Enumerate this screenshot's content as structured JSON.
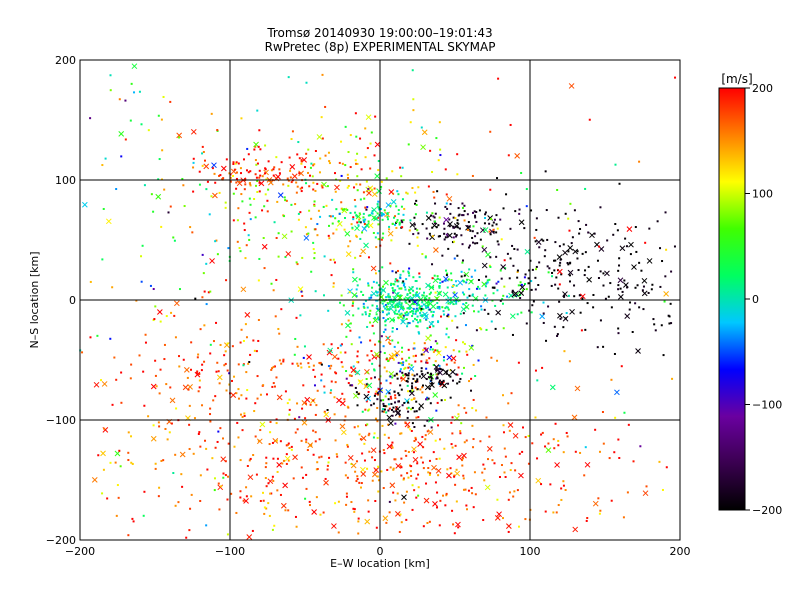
{
  "chart_data": {
    "type": "scatter",
    "title": "Tromsø 20140930 19:00:00–19:01:43",
    "subtitle": "RwPretec (8p) EXPERIMENTAL SKYMAP",
    "xlabel": "E–W location [km]",
    "ylabel": "N–S location [km]",
    "xlim": [
      -200,
      200
    ],
    "ylim": [
      -200,
      200
    ],
    "xticks": [
      -200,
      -100,
      0,
      100,
      200
    ],
    "yticks": [
      -200,
      -100,
      0,
      100,
      200
    ],
    "xtick_labels": [
      "−200",
      "−100",
      "0",
      "100",
      "200"
    ],
    "ytick_labels": [
      "−200",
      "−100",
      "0",
      "100",
      "200"
    ],
    "grid": true,
    "colorbar": {
      "label": "[m/s]",
      "range": [
        -200,
        200
      ],
      "ticks": [
        200,
        100,
        0,
        -100,
        -200
      ],
      "tick_labels": [
        "200",
        "100",
        "0",
        "−100",
        "−200"
      ],
      "colormap": [
        "#000000",
        "#3a0050",
        "#6a00a0",
        "#0000ff",
        "#00c8ff",
        "#00ff60",
        "#40ff00",
        "#ffff00",
        "#ff8000",
        "#ff0000"
      ]
    },
    "marker_types": [
      "dot",
      "cross"
    ],
    "clusters": [
      {
        "cx": -40,
        "cy": -130,
        "sx": 75,
        "sy": 40,
        "n": 520,
        "v": 170,
        "vs": 35
      },
      {
        "cx": -95,
        "cy": -55,
        "sx": 40,
        "sy": 25,
        "n": 140,
        "v": 175,
        "vs": 25
      },
      {
        "cx": 60,
        "cy": -140,
        "sx": 60,
        "sy": 35,
        "n": 180,
        "v": 175,
        "vs": 30
      },
      {
        "cx": 15,
        "cy": -55,
        "sx": 25,
        "sy": 20,
        "n": 220,
        "v": 90,
        "vs": 110
      },
      {
        "cx": 15,
        "cy": -85,
        "sx": 15,
        "sy": 10,
        "n": 70,
        "v": -190,
        "vs": 15
      },
      {
        "cx": 35,
        "cy": -65,
        "sx": 12,
        "sy": 5,
        "n": 60,
        "v": -195,
        "vs": 10
      },
      {
        "cx": 15,
        "cy": -2,
        "sx": 18,
        "sy": 10,
        "n": 320,
        "v": 10,
        "vs": 25
      },
      {
        "cx": 55,
        "cy": 5,
        "sx": 28,
        "sy": 15,
        "n": 140,
        "v": 20,
        "vs": 40
      },
      {
        "cx": 130,
        "cy": 20,
        "sx": 45,
        "sy": 30,
        "n": 260,
        "v": -195,
        "vs": 10
      },
      {
        "cx": 50,
        "cy": 60,
        "sx": 20,
        "sy": 10,
        "n": 120,
        "v": -190,
        "vs": 20
      },
      {
        "cx": -30,
        "cy": 75,
        "sx": 45,
        "sy": 30,
        "n": 240,
        "v": 110,
        "vs": 70
      },
      {
        "cx": -5,
        "cy": 70,
        "sx": 15,
        "sy": 8,
        "n": 90,
        "v": 20,
        "vs": 30
      },
      {
        "cx": -80,
        "cy": 105,
        "sx": 20,
        "sy": 8,
        "n": 90,
        "v": 180,
        "vs": 25
      },
      {
        "cx": -30,
        "cy": 110,
        "sx": 40,
        "sy": 25,
        "n": 80,
        "v": 140,
        "vs": 60
      },
      {
        "cx": -150,
        "cy": 100,
        "sx": 40,
        "sy": 70,
        "n": 70,
        "v": 60,
        "vs": 100
      },
      {
        "cx": 0,
        "cy": 0,
        "sx": 150,
        "sy": 120,
        "n": 220,
        "v": 80,
        "vs": 130
      }
    ]
  }
}
